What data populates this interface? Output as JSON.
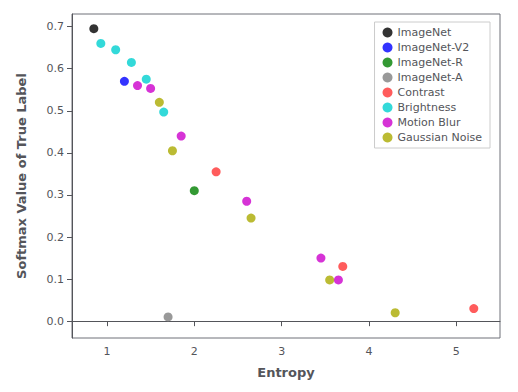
{
  "chart_data": {
    "type": "scatter",
    "xlabel": "Entropy",
    "ylabel": "Softmax Value of True Label",
    "xlim": [
      0.6,
      5.5
    ],
    "ylim": [
      -0.04,
      0.73
    ],
    "xticks": [
      1,
      2,
      3,
      4,
      5
    ],
    "yticks": [
      {
        "value": 0.0,
        "label": "0.0"
      },
      0.1,
      0.2,
      0.3,
      0.4,
      0.5,
      0.6,
      0.7
    ],
    "grid": false,
    "legend": "upper right",
    "series": [
      {
        "name": "ImageNet",
        "color": "#000000",
        "x": [
          0.85
        ],
        "values": [
          0.695
        ]
      },
      {
        "name": "ImageNet-V2",
        "color": "#0000ff",
        "x": [
          1.2
        ],
        "values": [
          0.57
        ]
      },
      {
        "name": "ImageNet-R",
        "color": "#008000",
        "x": [
          2.0
        ],
        "values": [
          0.31
        ]
      },
      {
        "name": "ImageNet-A",
        "color": "#808080",
        "x": [
          1.7
        ],
        "values": [
          0.01
        ]
      },
      {
        "name": "Contrast",
        "color": "#ff3333",
        "x": [
          2.25,
          3.7,
          5.2
        ],
        "values": [
          0.355,
          0.13,
          0.03
        ]
      },
      {
        "name": "Brightness",
        "color": "#00d0d0",
        "x": [
          0.93,
          1.1,
          1.28,
          1.45,
          1.65
        ],
        "values": [
          0.66,
          0.645,
          0.615,
          0.575,
          0.497
        ]
      },
      {
        "name": "Motion Blur",
        "color": "#cc00cc",
        "x": [
          1.35,
          1.5,
          1.85,
          2.6,
          3.45,
          3.65
        ],
        "values": [
          0.56,
          0.553,
          0.44,
          0.285,
          0.15,
          0.098
        ]
      },
      {
        "name": "Gaussian Noise",
        "color": "#aaaa00",
        "x": [
          1.6,
          1.75,
          2.65,
          3.55,
          4.3
        ],
        "values": [
          0.52,
          0.405,
          0.245,
          0.098,
          0.02
        ]
      }
    ]
  }
}
